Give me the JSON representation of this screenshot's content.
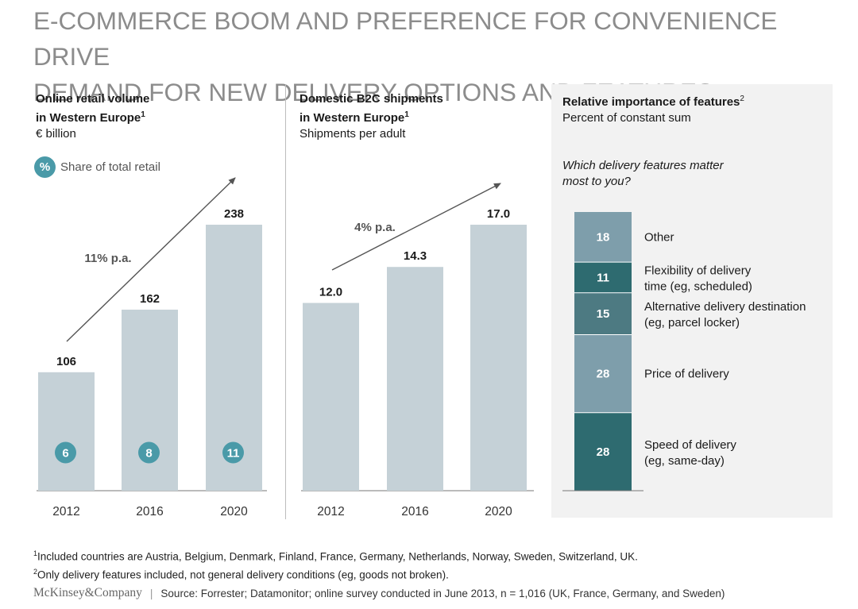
{
  "title": {
    "line1": "E-COMMERCE BOOM AND PREFERENCE FOR CONVENIENCE DRIVE",
    "line2": "DEMAND FOR NEW DELIVERY OPTIONS AND FEATURES"
  },
  "panels": {
    "retail": {
      "title_line1": "Online retail volume",
      "title_line2": "in Western Europe",
      "sup": "1",
      "unit": "€ billion",
      "legend_symbol": "%",
      "legend_text": "Share of total retail"
    },
    "shipments": {
      "title_line1": "Domestic B2C shipments",
      "title_line2": "in Western Europe",
      "sup": "1",
      "unit": "Shipments per adult"
    },
    "features": {
      "title_line1": "Relative importance of features",
      "sup": "2",
      "unit": "Percent of constant sum",
      "question_line1": "Which delivery features matter",
      "question_line2": "most to you?"
    }
  },
  "chart_data": [
    {
      "type": "bar",
      "title": "Online retail volume in Western Europe",
      "ylabel": "€ billion",
      "categories": [
        "2012",
        "2016",
        "2020"
      ],
      "values": [
        106,
        162,
        238
      ],
      "share_of_total_retail": [
        "6",
        "8",
        "11"
      ],
      "growth_label": "11% p.a.",
      "color": "#c5d1d7",
      "grid": false
    },
    {
      "type": "bar",
      "title": "Domestic B2C shipments in Western Europe",
      "ylabel": "Shipments per adult",
      "categories": [
        "2012",
        "2016",
        "2020"
      ],
      "values": [
        12.0,
        14.3,
        17.0
      ],
      "value_labels": [
        "12.0",
        "14.3",
        "17.0"
      ],
      "growth_label": "4% p.a.",
      "color": "#c5d1d7",
      "grid": false
    },
    {
      "type": "bar",
      "title": "Relative importance of features",
      "ylabel": "Percent of constant sum",
      "stacked": true,
      "segments": [
        {
          "value": 18,
          "label": "18",
          "name_line1": "Other",
          "name_line2": "",
          "color": "#7e9eab"
        },
        {
          "value": 11,
          "label": "11",
          "name_line1": "Flexibility of delivery",
          "name_line2": "time (eg, scheduled)",
          "color": "#2e6b70"
        },
        {
          "value": 15,
          "label": "15",
          "name_line1": "Alternative delivery destination",
          "name_line2": "(eg, parcel locker)",
          "color": "#4d7a82"
        },
        {
          "value": 28,
          "label": "28",
          "name_line1": "Price of delivery",
          "name_line2": "",
          "color": "#7e9eab"
        },
        {
          "value": 28,
          "label": "28",
          "name_line1": "Speed of delivery",
          "name_line2": "(eg, same-day)",
          "color": "#2e6b70"
        }
      ]
    }
  ],
  "footnotes": {
    "n1_sup": "1",
    "n1": "Included countries are Austria, Belgium, Denmark, Finland, France, Germany, Netherlands, Norway, Sweden, Switzerland, UK.",
    "n2_sup": "2",
    "n2": "Only delivery features included, not general delivery conditions (eg, goods not broken)."
  },
  "source": {
    "brand": "McKinsey&Company",
    "separator": "|",
    "text": "Source: Forrester; Datamonitor; online survey conducted in June 2013, n = 1,016 (UK, France, Germany, and Sweden)"
  }
}
